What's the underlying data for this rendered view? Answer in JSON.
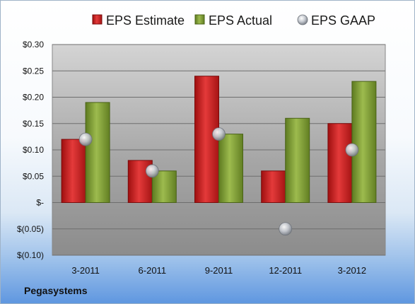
{
  "company": "Pegasystems",
  "chart_data": {
    "type": "bar",
    "title": "",
    "xlabel": "",
    "ylabel": "",
    "categories": [
      "3-2011",
      "6-2011",
      "9-2011",
      "12-2011",
      "3-2012"
    ],
    "series": [
      {
        "name": "EPS Estimate",
        "type": "bar",
        "color": "#cc1f1f",
        "values": [
          0.12,
          0.08,
          0.24,
          0.06,
          0.15
        ]
      },
      {
        "name": "EPS Actual",
        "type": "bar",
        "color": "#7e9d32",
        "values": [
          0.19,
          0.06,
          0.13,
          0.16,
          0.23
        ]
      },
      {
        "name": "EPS GAAP",
        "type": "scatter",
        "color": "#b8bcc4",
        "values": [
          0.12,
          0.06,
          0.13,
          -0.05,
          0.1
        ]
      }
    ],
    "ylim": [
      -0.1,
      0.3
    ],
    "y_ticks": [
      0.3,
      0.25,
      0.2,
      0.15,
      0.1,
      0.05,
      0.0,
      -0.05,
      -0.1
    ],
    "y_tick_labels": [
      "$0.30",
      "$0.25",
      "$0.20",
      "$0.15",
      "$0.10",
      "$0.05",
      "$-",
      "$(0.05)",
      "$(0.10)"
    ],
    "grid": true,
    "legend_position": "top"
  }
}
